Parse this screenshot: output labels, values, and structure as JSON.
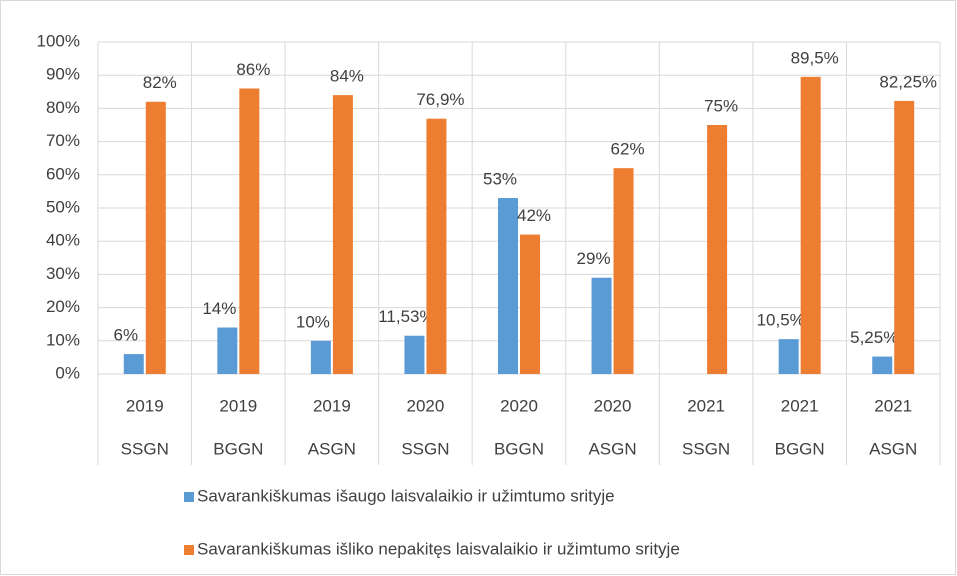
{
  "chart_data": {
    "type": "bar",
    "categories": [
      "2019",
      "2019",
      "2019",
      "2020",
      "2020",
      "2020",
      "2021",
      "2021",
      "2021"
    ],
    "groups": [
      "SSGN",
      "BGGN",
      "ASGN",
      "SSGN",
      "BGGN",
      "ASGN",
      "SSGN",
      "BGGN",
      "ASGN"
    ],
    "series": [
      {
        "name": "Savarankiškumas išaugo laisvalaikio ir užimtumo srityje",
        "color": "#5b9bd5",
        "values": [
          6,
          14,
          10,
          11.53,
          53,
          29,
          null,
          10.5,
          5.25
        ],
        "value_labels": [
          "6%",
          "14%",
          "10%",
          "11,53%",
          "53%",
          "29%",
          null,
          "10,5%",
          "5,25%"
        ]
      },
      {
        "name": "Savarankiškumas išliko nepakitęs laisvalaikio ir užimtumo srityje",
        "color": "#ed7d31",
        "values": [
          82,
          86,
          84,
          76.9,
          42,
          62,
          75,
          89.5,
          82.25
        ],
        "value_labels": [
          "82%",
          "86%",
          "84%",
          "76,9%",
          "42%",
          "62%",
          "75%",
          "89,5%",
          "82,25%"
        ]
      }
    ],
    "ylim": [
      0,
      100
    ],
    "yticks": [
      {
        "value": 0,
        "label": "0%"
      },
      {
        "value": 10,
        "label": "10%"
      },
      {
        "value": 20,
        "label": "20%"
      },
      {
        "value": 30,
        "label": "30%"
      },
      {
        "value": 40,
        "label": "40%"
      },
      {
        "value": 50,
        "label": "50%"
      },
      {
        "value": 60,
        "label": "60%"
      },
      {
        "value": 70,
        "label": "70%"
      },
      {
        "value": 80,
        "label": "80%"
      },
      {
        "value": 90,
        "label": "90%"
      },
      {
        "value": 100,
        "label": "100%"
      }
    ],
    "grid": true,
    "legend": "bottom"
  }
}
